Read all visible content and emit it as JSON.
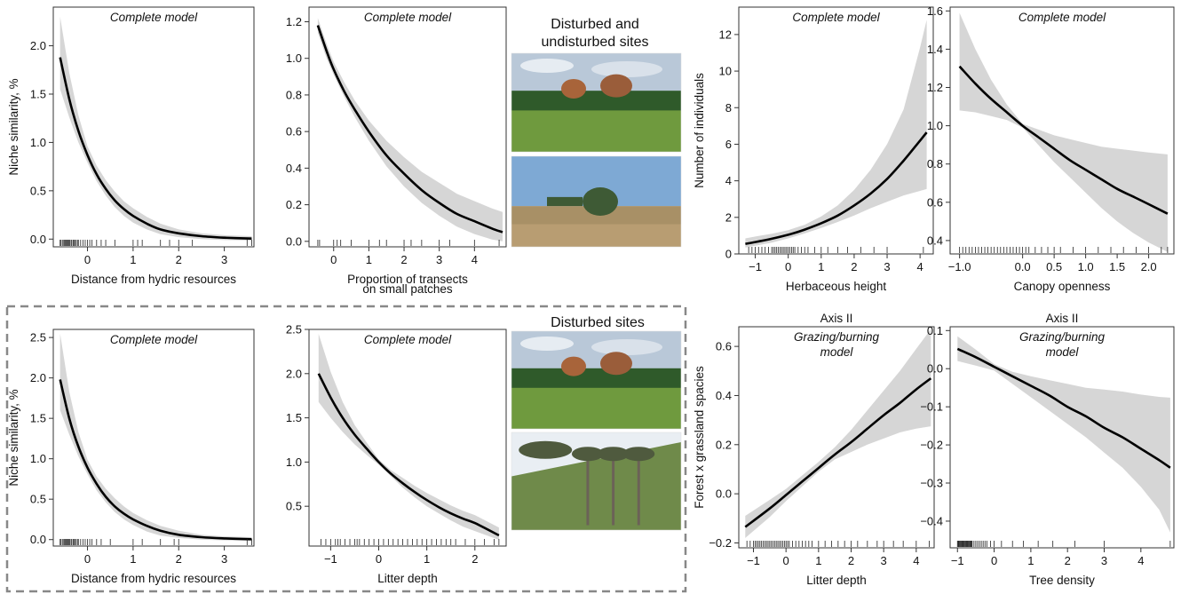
{
  "section_labels": {
    "top_photos": "Disturbed and\nundisturbed sites",
    "bottom_photos": "Disturbed sites"
  },
  "photos": [
    {
      "name": "disturbed-site-photo-top",
      "description_visible": "grassland with tree clump under cloudy sky",
      "colors": {
        "sky": "#b9c8d8",
        "trees": "#2f5a2a",
        "grass": "#6f9a3e"
      }
    },
    {
      "name": "undisturbed-site-photo",
      "description_visible": "tall dry grassland with shrub",
      "colors": {
        "sky": "#7ea9d4",
        "trees": "#3e5a35",
        "grass": "#a89066"
      }
    },
    {
      "name": "disturbed-site-photo-bottom-1",
      "description_visible": "grassland with tree clump under cloudy sky",
      "colors": {
        "sky": "#b9c8d8",
        "trees": "#2f5a2a",
        "grass": "#6f9a3e"
      }
    },
    {
      "name": "disturbed-site-photo-bottom-2",
      "description_visible": "hillside with araucaria trees",
      "colors": {
        "sky": "#e9eef3",
        "trees": "#4f5a3e",
        "grass": "#6f8a4a"
      }
    }
  ],
  "chart_data": [
    {
      "id": "p1",
      "type": "line",
      "title": "Complete model",
      "title_lines": [
        "Complete model"
      ],
      "xlabel": "Distance from hydric resources",
      "xlabel_lines": [
        "Distance from hydric resources"
      ],
      "ylabel": "Niche similarity, %",
      "xlim": [
        -0.75,
        3.65
      ],
      "ylim": [
        -0.08,
        2.4
      ],
      "xticks": [
        0,
        1,
        2,
        3
      ],
      "xtick_labels": [
        "0",
        "1",
        "2",
        "3"
      ],
      "yticks": [
        0.0,
        0.5,
        1.0,
        1.5,
        2.0
      ],
      "ytick_labels": [
        "0.0",
        "0.5",
        "1.0",
        "1.5",
        "2.0"
      ],
      "x": [
        -0.6,
        -0.4,
        -0.2,
        0,
        0.2,
        0.4,
        0.6,
        0.8,
        1.0,
        1.3,
        1.6,
        2.0,
        2.5,
        3.0,
        3.6
      ],
      "y": [
        1.88,
        1.45,
        1.12,
        0.87,
        0.67,
        0.52,
        0.4,
        0.31,
        0.24,
        0.16,
        0.1,
        0.06,
        0.03,
        0.015,
        0.005
      ],
      "lower": [
        1.55,
        1.26,
        1.0,
        0.79,
        0.6,
        0.45,
        0.33,
        0.24,
        0.17,
        0.1,
        0.05,
        0.02,
        0.0,
        -0.01,
        -0.015
      ],
      "upper": [
        2.3,
        1.72,
        1.28,
        0.96,
        0.76,
        0.61,
        0.49,
        0.39,
        0.32,
        0.23,
        0.16,
        0.1,
        0.06,
        0.04,
        0.03
      ],
      "rug": [
        -0.6,
        -0.58,
        -0.55,
        -0.52,
        -0.5,
        -0.48,
        -0.46,
        -0.44,
        -0.42,
        -0.4,
        -0.38,
        -0.35,
        -0.32,
        -0.3,
        -0.28,
        -0.25,
        -0.22,
        -0.2,
        -0.15,
        -0.1,
        -0.05,
        0.0,
        0.05,
        0.1,
        0.2,
        0.3,
        0.4,
        0.6,
        1.0,
        1.1,
        1.2,
        1.6,
        1.8,
        2.0,
        2.3,
        3.5,
        3.6
      ]
    },
    {
      "id": "p2",
      "type": "line",
      "title": "Complete model",
      "title_lines": [
        "Complete model"
      ],
      "xlabel": "Proportion of transects on small patches",
      "xlabel_lines": [
        "Proportion of transects",
        "on small patches"
      ],
      "ylabel": "",
      "xlim": [
        -0.7,
        4.9
      ],
      "ylim": [
        -0.03,
        1.28
      ],
      "xticks": [
        0,
        1,
        2,
        3,
        4
      ],
      "xtick_labels": [
        "0",
        "1",
        "2",
        "3",
        "4"
      ],
      "yticks": [
        0.0,
        0.2,
        0.4,
        0.6,
        0.8,
        1.0,
        1.2
      ],
      "ytick_labels": [
        "0.0",
        "0.2",
        "0.4",
        "0.6",
        "0.8",
        "1.0",
        "1.2"
      ],
      "x": [
        -0.45,
        -0.2,
        0,
        0.3,
        0.6,
        1.0,
        1.5,
        2.0,
        2.5,
        3.0,
        3.5,
        4.0,
        4.5,
        4.8
      ],
      "y": [
        1.18,
        1.04,
        0.94,
        0.82,
        0.72,
        0.6,
        0.47,
        0.37,
        0.28,
        0.21,
        0.15,
        0.11,
        0.07,
        0.05
      ],
      "lower": [
        1.14,
        1.0,
        0.91,
        0.79,
        0.68,
        0.55,
        0.41,
        0.3,
        0.21,
        0.14,
        0.08,
        0.04,
        0.01,
        0.0
      ],
      "upper": [
        1.22,
        1.08,
        0.98,
        0.87,
        0.77,
        0.66,
        0.55,
        0.46,
        0.38,
        0.32,
        0.26,
        0.22,
        0.18,
        0.16
      ],
      "rug": [
        -0.45,
        -0.4,
        0.0,
        0.1,
        0.2,
        0.5,
        1.0,
        1.3,
        1.5,
        2.0,
        2.2,
        2.5,
        3.0,
        3.3,
        4.0,
        4.7
      ]
    },
    {
      "id": "p3",
      "type": "line",
      "title": "Complete model",
      "title_lines": [
        "Complete model"
      ],
      "xlabel": "Herbaceous height",
      "xlabel_lines": [
        "Herbaceous height"
      ],
      "ylabel": "Number of individuals",
      "xlim": [
        -1.5,
        4.4
      ],
      "ylim": [
        0,
        13.5
      ],
      "xticks": [
        -1,
        0,
        1,
        2,
        3,
        4
      ],
      "xtick_labels": [
        "−1",
        "0",
        "1",
        "2",
        "3",
        "4"
      ],
      "yticks": [
        0,
        2,
        4,
        6,
        8,
        10,
        12
      ],
      "ytick_labels": [
        "0",
        "2",
        "4",
        "6",
        "8",
        "10",
        "12"
      ],
      "x": [
        -1.3,
        -1.0,
        -0.5,
        0,
        0.5,
        1.0,
        1.5,
        2.0,
        2.5,
        3.0,
        3.5,
        4.0,
        4.2
      ],
      "y": [
        0.55,
        0.65,
        0.83,
        1.05,
        1.33,
        1.68,
        2.1,
        2.65,
        3.3,
        4.1,
        5.1,
        6.2,
        6.65
      ],
      "lower": [
        0.35,
        0.45,
        0.62,
        0.85,
        1.12,
        1.42,
        1.75,
        2.1,
        2.5,
        2.85,
        3.2,
        3.45,
        3.55
      ],
      "upper": [
        0.85,
        0.95,
        1.1,
        1.3,
        1.6,
        2.05,
        2.65,
        3.5,
        4.6,
        6.0,
        7.9,
        11.3,
        12.8
      ],
      "rug": [
        -1.2,
        -1.1,
        -1.0,
        -0.9,
        -0.8,
        -0.7,
        -0.6,
        -0.5,
        -0.45,
        -0.4,
        -0.35,
        -0.3,
        -0.25,
        -0.2,
        -0.15,
        -0.1,
        -0.05,
        0.0,
        0.05,
        0.1,
        0.15,
        0.2,
        0.3,
        0.4,
        0.5,
        0.6,
        0.8,
        1.0,
        1.2,
        1.5,
        1.8,
        2.2,
        2.6,
        3.0,
        4.1
      ]
    },
    {
      "id": "p4",
      "type": "line",
      "title": "Complete model",
      "title_lines": [
        "Complete model"
      ],
      "xlabel": "Canopy openness",
      "xlabel_lines": [
        "Canopy openness"
      ],
      "ylabel": "",
      "xlim": [
        -1.15,
        2.4
      ],
      "ylim": [
        0.33,
        1.62
      ],
      "xticks": [
        -1.0,
        0.0,
        0.5,
        1.0,
        1.5,
        2.0
      ],
      "xtick_labels": [
        "−1.0",
        "0.0",
        "0.5",
        "1.0",
        "1.5",
        "2.0"
      ],
      "yticks": [
        0.4,
        0.6,
        0.8,
        1.0,
        1.2,
        1.4,
        1.6
      ],
      "ytick_labels": [
        "0.4",
        "0.6",
        "0.8",
        "1.0",
        "1.2",
        "1.4",
        "1.6"
      ],
      "x": [
        -1.0,
        -0.75,
        -0.5,
        -0.25,
        0,
        0.25,
        0.5,
        0.75,
        1.0,
        1.25,
        1.5,
        1.75,
        2.0,
        2.3
      ],
      "y": [
        1.31,
        1.22,
        1.14,
        1.07,
        1.0,
        0.94,
        0.88,
        0.82,
        0.77,
        0.72,
        0.67,
        0.63,
        0.59,
        0.54
      ],
      "lower": [
        1.08,
        1.07,
        1.05,
        1.03,
        0.99,
        0.9,
        0.81,
        0.73,
        0.65,
        0.57,
        0.5,
        0.44,
        0.39,
        0.34
      ],
      "upper": [
        1.59,
        1.4,
        1.24,
        1.11,
        1.01,
        0.98,
        0.95,
        0.93,
        0.91,
        0.89,
        0.88,
        0.87,
        0.86,
        0.85
      ],
      "rug": [
        -1.0,
        -0.95,
        -0.9,
        -0.85,
        -0.8,
        -0.75,
        -0.7,
        -0.65,
        -0.6,
        -0.55,
        -0.5,
        -0.45,
        -0.4,
        -0.35,
        -0.3,
        -0.25,
        -0.2,
        -0.15,
        -0.1,
        -0.05,
        0.0,
        0.05,
        0.1,
        0.2,
        0.3,
        0.4,
        0.5,
        0.6,
        0.8,
        1.0,
        1.2,
        1.4,
        1.6,
        1.8,
        2.0,
        2.2,
        2.3
      ]
    },
    {
      "id": "p5",
      "type": "line",
      "title": "Complete model",
      "title_lines": [
        "Complete model"
      ],
      "xlabel": "Distance from hydric resources",
      "xlabel_lines": [
        "Distance from hydric resources"
      ],
      "ylabel": "Niche similarity, %",
      "xlim": [
        -0.75,
        3.65
      ],
      "ylim": [
        -0.08,
        2.6
      ],
      "xticks": [
        0,
        1,
        2,
        3
      ],
      "xtick_labels": [
        "0",
        "1",
        "2",
        "3"
      ],
      "yticks": [
        0.0,
        0.5,
        1.0,
        1.5,
        2.0,
        2.5
      ],
      "ytick_labels": [
        "0.0",
        "0.5",
        "1.0",
        "1.5",
        "2.0",
        "2.5"
      ],
      "x": [
        -0.6,
        -0.4,
        -0.2,
        0,
        0.2,
        0.4,
        0.6,
        0.8,
        1.0,
        1.3,
        1.6,
        2.0,
        2.5,
        3.0,
        3.6
      ],
      "y": [
        1.98,
        1.5,
        1.15,
        0.89,
        0.69,
        0.53,
        0.41,
        0.32,
        0.25,
        0.17,
        0.11,
        0.06,
        0.03,
        0.015,
        0.005
      ],
      "lower": [
        1.6,
        1.3,
        1.03,
        0.81,
        0.61,
        0.46,
        0.34,
        0.25,
        0.18,
        0.1,
        0.05,
        0.02,
        0.0,
        -0.01,
        -0.015
      ],
      "upper": [
        2.55,
        1.83,
        1.33,
        0.99,
        0.78,
        0.63,
        0.51,
        0.41,
        0.33,
        0.24,
        0.17,
        0.11,
        0.06,
        0.04,
        0.03
      ],
      "rug": [
        -0.6,
        -0.58,
        -0.55,
        -0.52,
        -0.5,
        -0.48,
        -0.46,
        -0.44,
        -0.42,
        -0.4,
        -0.38,
        -0.35,
        -0.32,
        -0.3,
        -0.28,
        -0.25,
        -0.22,
        -0.2,
        -0.15,
        -0.1,
        -0.05,
        0.0,
        0.05,
        0.1,
        0.2,
        0.3,
        0.5,
        1.0,
        1.2,
        1.6,
        1.9,
        2.0,
        3.5,
        3.6
      ]
    },
    {
      "id": "p6",
      "type": "line",
      "title": "Complete model",
      "title_lines": [
        "Complete model"
      ],
      "xlabel": "Litter depth",
      "xlabel_lines": [
        "Litter depth"
      ],
      "ylabel": "",
      "xlim": [
        -1.45,
        2.65
      ],
      "ylim": [
        0.05,
        2.5
      ],
      "xticks": [
        -1,
        0,
        1,
        2
      ],
      "xtick_labels": [
        "−1",
        "0",
        "1",
        "2"
      ],
      "yticks": [
        0.5,
        1.0,
        1.5,
        2.0,
        2.5
      ],
      "ytick_labels": [
        "0.5",
        "1.0",
        "1.5",
        "2.0",
        "2.5"
      ],
      "x": [
        -1.25,
        -1.0,
        -0.75,
        -0.5,
        -0.25,
        0,
        0.25,
        0.5,
        0.75,
        1.0,
        1.25,
        1.5,
        1.75,
        2.0,
        2.5
      ],
      "y": [
        2.0,
        1.73,
        1.5,
        1.31,
        1.15,
        1.0,
        0.87,
        0.76,
        0.66,
        0.57,
        0.49,
        0.42,
        0.36,
        0.31,
        0.17
      ],
      "lower": [
        1.68,
        1.5,
        1.34,
        1.2,
        1.08,
        0.97,
        0.84,
        0.71,
        0.6,
        0.5,
        0.42,
        0.34,
        0.27,
        0.22,
        0.12
      ],
      "upper": [
        2.45,
        2.02,
        1.68,
        1.42,
        1.22,
        1.03,
        0.91,
        0.82,
        0.73,
        0.65,
        0.58,
        0.51,
        0.45,
        0.4,
        0.26
      ],
      "rug": [
        -1.2,
        -1.1,
        -1.0,
        -0.9,
        -0.85,
        -0.8,
        -0.7,
        -0.6,
        -0.5,
        -0.45,
        -0.4,
        -0.3,
        -0.2,
        -0.1,
        0.0,
        0.1,
        0.2,
        0.3,
        0.4,
        0.5,
        0.6,
        0.7,
        0.8,
        0.9,
        1.0,
        1.1,
        1.2,
        1.3,
        1.4,
        1.5,
        1.6,
        1.8,
        2.0,
        2.2,
        2.4,
        2.5
      ]
    },
    {
      "id": "p7",
      "type": "line",
      "title": "Grazing/burning\nmodel",
      "title_lines": [
        "Grazing/burning",
        "model"
      ],
      "top_label": "Axis II",
      "xlabel": "Litter depth",
      "xlabel_lines": [
        "Litter depth"
      ],
      "ylabel": "Forest x grassland spacies",
      "xlim": [
        -1.45,
        4.55
      ],
      "ylim": [
        -0.22,
        0.68
      ],
      "xticks": [
        -1,
        0,
        1,
        2,
        3,
        4
      ],
      "xtick_labels": [
        "−1",
        "0",
        "1",
        "2",
        "3",
        "4"
      ],
      "yticks": [
        -0.2,
        0.0,
        0.2,
        0.4,
        0.6
      ],
      "ytick_labels": [
        "−0.2",
        "0.0",
        "0.2",
        "0.4",
        "0.6"
      ],
      "x": [
        -1.25,
        -0.5,
        0,
        0.5,
        1.0,
        1.5,
        2.0,
        2.5,
        3.0,
        3.5,
        4.0,
        4.45
      ],
      "y": [
        -0.135,
        -0.06,
        -0.005,
        0.05,
        0.105,
        0.16,
        0.21,
        0.265,
        0.32,
        0.37,
        0.425,
        0.47
      ],
      "lower": [
        -0.18,
        -0.095,
        -0.03,
        0.03,
        0.09,
        0.14,
        0.17,
        0.2,
        0.225,
        0.25,
        0.265,
        0.275
      ],
      "upper": [
        -0.09,
        -0.025,
        0.02,
        0.075,
        0.13,
        0.19,
        0.26,
        0.34,
        0.42,
        0.5,
        0.59,
        0.67
      ],
      "rug": [
        -1.2,
        -1.1,
        -1.0,
        -0.95,
        -0.9,
        -0.85,
        -0.8,
        -0.75,
        -0.7,
        -0.65,
        -0.6,
        -0.55,
        -0.5,
        -0.45,
        -0.4,
        -0.35,
        -0.3,
        -0.25,
        -0.2,
        -0.15,
        -0.1,
        -0.05,
        0.0,
        0.05,
        0.1,
        0.2,
        0.3,
        0.4,
        0.5,
        0.6,
        0.7,
        0.8,
        1.0,
        1.2,
        1.4,
        1.6,
        1.8,
        2.0,
        2.2,
        2.5,
        2.8,
        3.0,
        3.3,
        3.6,
        4.0,
        4.4
      ]
    },
    {
      "id": "p8",
      "type": "line",
      "title": "Grazing/burning\nmodel",
      "title_lines": [
        "Grazing/burning",
        "model"
      ],
      "top_label": "Axis II",
      "xlabel": "Tree density",
      "xlabel_lines": [
        "Tree density"
      ],
      "ylabel": "",
      "xlim": [
        -1.2,
        4.9
      ],
      "ylim": [
        -0.47,
        0.11
      ],
      "xticks": [
        -1,
        0,
        1,
        2,
        3,
        4
      ],
      "xtick_labels": [
        "−1",
        "0",
        "1",
        "2",
        "3",
        "4"
      ],
      "yticks": [
        -0.4,
        -0.3,
        -0.2,
        -0.1,
        0.0,
        0.1
      ],
      "ytick_labels": [
        "−0.4",
        "−0.3",
        "−0.2",
        "−0.1",
        "0.0",
        "0.1"
      ],
      "x": [
        -1.0,
        -0.5,
        0,
        0.5,
        1.0,
        1.5,
        2.0,
        2.5,
        3.0,
        3.5,
        4.0,
        4.5,
        4.8
      ],
      "y": [
        0.052,
        0.03,
        0.005,
        -0.02,
        -0.045,
        -0.07,
        -0.1,
        -0.125,
        -0.155,
        -0.18,
        -0.21,
        -0.24,
        -0.26
      ],
      "lower": [
        0.02,
        0.008,
        -0.005,
        -0.04,
        -0.075,
        -0.11,
        -0.145,
        -0.18,
        -0.22,
        -0.26,
        -0.31,
        -0.37,
        -0.43
      ],
      "upper": [
        0.085,
        0.05,
        0.012,
        -0.008,
        -0.02,
        -0.03,
        -0.04,
        -0.05,
        -0.055,
        -0.06,
        -0.068,
        -0.074,
        -0.076
      ],
      "rug": [
        -1.0,
        -0.98,
        -0.96,
        -0.94,
        -0.92,
        -0.9,
        -0.88,
        -0.86,
        -0.84,
        -0.82,
        -0.8,
        -0.78,
        -0.76,
        -0.74,
        -0.72,
        -0.7,
        -0.68,
        -0.66,
        -0.64,
        -0.62,
        -0.6,
        -0.55,
        -0.5,
        -0.45,
        -0.4,
        -0.35,
        -0.3,
        -0.25,
        -0.2,
        -0.1,
        0.0,
        0.2,
        0.5,
        0.8,
        1.2,
        1.6,
        2.2,
        3.0,
        4.8
      ]
    }
  ]
}
